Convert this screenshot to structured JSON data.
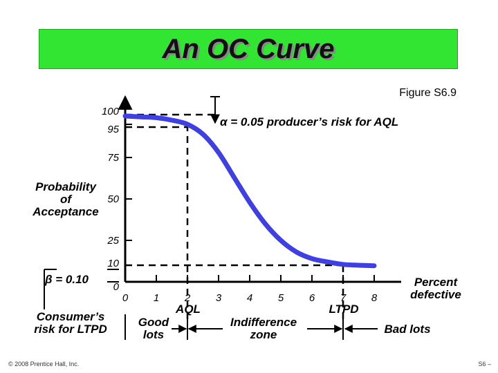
{
  "slide": {
    "title": "An OC Curve",
    "figure_label": "Figure S6.9",
    "footer_left": "© 2008 Prentice Hall, Inc.",
    "footer_right": "S6 –"
  },
  "annotations": {
    "alpha": "α = 0.05 producer’s risk for AQL",
    "beta": "β = 0.10",
    "consumer_risk_1": "Consumer’s",
    "consumer_risk_2": "risk for LTPD",
    "good_lots_1": "Good",
    "good_lots_2": "lots",
    "indiff_1": "Indifference",
    "indiff_2": "zone",
    "bad_lots": "Bad lots",
    "aql": "AQL",
    "ltpd": "LTPD"
  },
  "chart_data": {
    "type": "line",
    "ylabel": [
      "Probability",
      "of",
      "Acceptance"
    ],
    "xlabel": [
      "Percent",
      "defective"
    ],
    "x_ticks": [
      "0",
      "1",
      "2",
      "3",
      "4",
      "5",
      "6",
      "7",
      "8"
    ],
    "y_ticks": [
      {
        "value": 100,
        "label": "100"
      },
      {
        "value": 95,
        "label": "95"
      },
      {
        "value": 75,
        "label": "75"
      },
      {
        "value": 50,
        "label": "50"
      },
      {
        "value": 25,
        "label": "25"
      },
      {
        "value": 10,
        "label": "10"
      },
      {
        "value": 0,
        "label": "0"
      }
    ],
    "xlim": [
      0,
      8.5
    ],
    "ylim": [
      0,
      100
    ],
    "aql_x": 2,
    "ltpd_x": 7,
    "series": [
      {
        "color": "#4040dd",
        "points": [
          [
            0,
            100
          ],
          [
            0.5,
            99.5
          ],
          [
            1,
            99
          ],
          [
            1.5,
            97.5
          ],
          [
            2,
            95
          ],
          [
            2.5,
            89
          ],
          [
            3,
            78
          ],
          [
            3.5,
            63
          ],
          [
            4,
            48
          ],
          [
            4.5,
            35
          ],
          [
            5,
            25
          ],
          [
            5.5,
            18
          ],
          [
            6,
            14
          ],
          [
            6.5,
            12
          ],
          [
            7,
            10.5
          ],
          [
            7.5,
            10
          ],
          [
            8,
            9.7
          ]
        ]
      }
    ]
  }
}
